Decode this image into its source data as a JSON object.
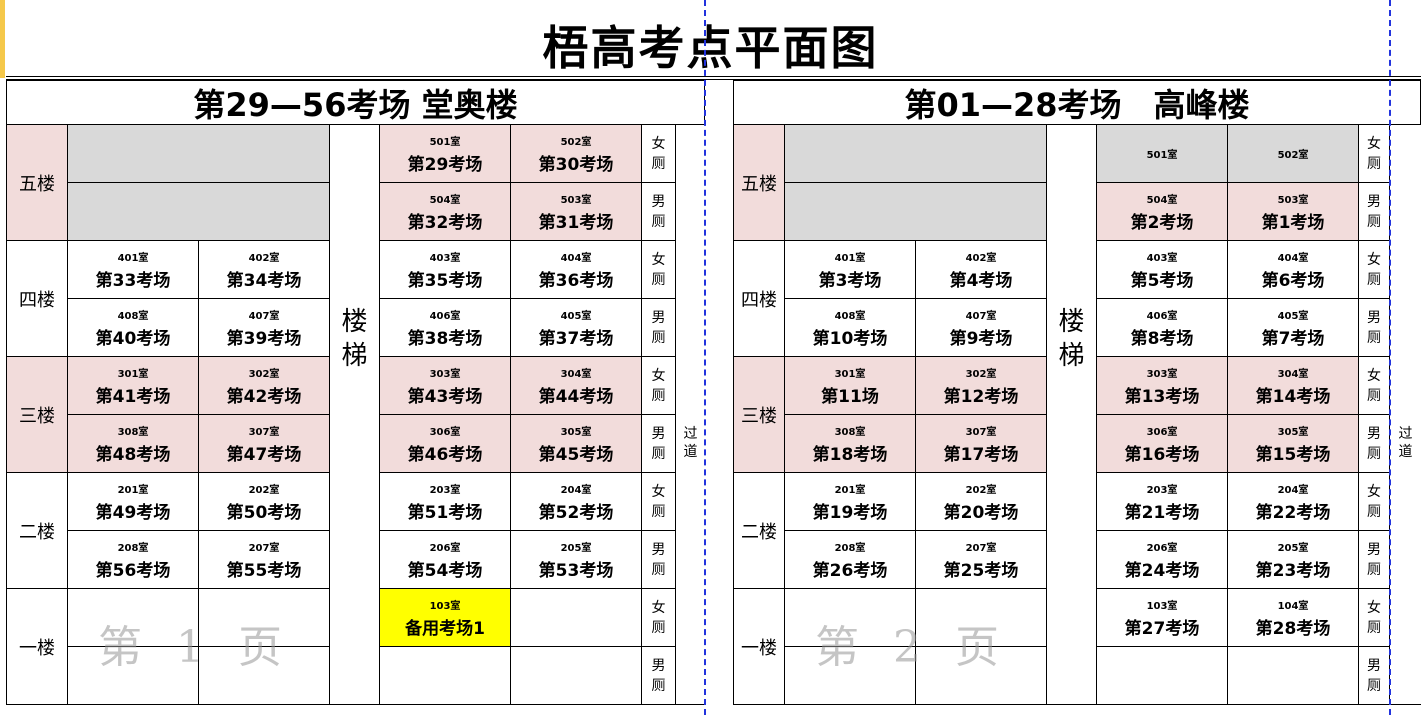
{
  "title": "梧高考点平面图",
  "stairs_label": "楼梯",
  "aisle_label": "过道",
  "colors": {
    "pink": "#f2dcdb",
    "gray": "#d9d9d9",
    "yellow": "#ffff00",
    "white": "#ffffff",
    "page_break": "#2233dd"
  },
  "watermarks": [
    "第 1 页",
    "第 2 页"
  ],
  "buildings": [
    {
      "title": "第29—56考场 堂奥楼",
      "floors": [
        {
          "label": "五楼",
          "color": "pink",
          "rows": [
            {
              "left_gray": true,
              "cells": [
                {
                  "room": "501室",
                  "exam": "第29考场",
                  "color": "pink"
                },
                {
                  "room": "502室",
                  "exam": "第30考场",
                  "color": "pink"
                }
              ],
              "toilet": "女厕"
            },
            {
              "left_gray": true,
              "cells": [
                {
                  "room": "504室",
                  "exam": "第32考场",
                  "color": "pink"
                },
                {
                  "room": "503室",
                  "exam": "第31考场",
                  "color": "pink"
                }
              ],
              "toilet": "男厕"
            }
          ]
        },
        {
          "label": "四楼",
          "color": "white",
          "rows": [
            {
              "cells": [
                {
                  "room": "401室",
                  "exam": "第33考场"
                },
                {
                  "room": "402室",
                  "exam": "第34考场"
                },
                {
                  "room": "403室",
                  "exam": "第35考场"
                },
                {
                  "room": "404室",
                  "exam": "第36考场"
                }
              ],
              "toilet": "女厕"
            },
            {
              "cells": [
                {
                  "room": "408室",
                  "exam": "第40考场"
                },
                {
                  "room": "407室",
                  "exam": "第39考场"
                },
                {
                  "room": "406室",
                  "exam": "第38考场"
                },
                {
                  "room": "405室",
                  "exam": "第37考场"
                }
              ],
              "toilet": "男厕"
            }
          ]
        },
        {
          "label": "三楼",
          "color": "pink",
          "rows": [
            {
              "cells": [
                {
                  "room": "301室",
                  "exam": "第41考场",
                  "color": "pink"
                },
                {
                  "room": "302室",
                  "exam": "第42考场",
                  "color": "pink"
                },
                {
                  "room": "303室",
                  "exam": "第43考场",
                  "color": "pink"
                },
                {
                  "room": "304室",
                  "exam": "第44考场",
                  "color": "pink"
                }
              ],
              "toilet": "女厕"
            },
            {
              "cells": [
                {
                  "room": "308室",
                  "exam": "第48考场",
                  "color": "pink"
                },
                {
                  "room": "307室",
                  "exam": "第47考场",
                  "color": "pink"
                },
                {
                  "room": "306室",
                  "exam": "第46考场",
                  "color": "pink"
                },
                {
                  "room": "305室",
                  "exam": "第45考场",
                  "color": "pink"
                }
              ],
              "toilet": "男厕"
            }
          ]
        },
        {
          "label": "二楼",
          "color": "white",
          "rows": [
            {
              "cells": [
                {
                  "room": "201室",
                  "exam": "第49考场"
                },
                {
                  "room": "202室",
                  "exam": "第50考场"
                },
                {
                  "room": "203室",
                  "exam": "第51考场"
                },
                {
                  "room": "204室",
                  "exam": "第52考场"
                }
              ],
              "toilet": "女厕"
            },
            {
              "cells": [
                {
                  "room": "208室",
                  "exam": "第56考场"
                },
                {
                  "room": "207室",
                  "exam": "第55考场"
                },
                {
                  "room": "206室",
                  "exam": "第54考场"
                },
                {
                  "room": "205室",
                  "exam": "第53考场"
                }
              ],
              "toilet": "男厕"
            }
          ]
        },
        {
          "label": "一楼",
          "color": "white",
          "rows": [
            {
              "cells": [
                {},
                {},
                {
                  "room": "103室",
                  "exam": "备用考场1",
                  "color": "yellow"
                },
                {}
              ],
              "toilet": "女厕"
            },
            {
              "cells": [
                {},
                {},
                {},
                {}
              ],
              "toilet": "男厕"
            }
          ]
        }
      ]
    },
    {
      "title": "第01—28考场　高峰楼",
      "floors": [
        {
          "label": "五楼",
          "color": "pink",
          "rows": [
            {
              "left_gray": true,
              "cells": [
                {
                  "room": "501室",
                  "color": "gray"
                },
                {
                  "room": "502室",
                  "color": "gray"
                }
              ],
              "toilet": "女厕"
            },
            {
              "left_gray": true,
              "cells": [
                {
                  "room": "504室",
                  "exam": "第2考场",
                  "color": "pink"
                },
                {
                  "room": "503室",
                  "exam": "第1考场",
                  "color": "pink"
                }
              ],
              "toilet": "男厕"
            }
          ]
        },
        {
          "label": "四楼",
          "color": "white",
          "rows": [
            {
              "cells": [
                {
                  "room": "401室",
                  "exam": "第3考场"
                },
                {
                  "room": "402室",
                  "exam": "第4考场"
                },
                {
                  "room": "403室",
                  "exam": "第5考场"
                },
                {
                  "room": "404室",
                  "exam": "第6考场"
                }
              ],
              "toilet": "女厕"
            },
            {
              "cells": [
                {
                  "room": "408室",
                  "exam": "第10考场"
                },
                {
                  "room": "407室",
                  "exam": "第9考场"
                },
                {
                  "room": "406室",
                  "exam": "第8考场"
                },
                {
                  "room": "405室",
                  "exam": "第7考场"
                }
              ],
              "toilet": "男厕"
            }
          ]
        },
        {
          "label": "三楼",
          "color": "pink",
          "rows": [
            {
              "cells": [
                {
                  "room": "301室",
                  "exam": "第11场",
                  "color": "pink"
                },
                {
                  "room": "302室",
                  "exam": "第12考场",
                  "color": "pink"
                },
                {
                  "room": "303室",
                  "exam": "第13考场",
                  "color": "pink"
                },
                {
                  "room": "304室",
                  "exam": "第14考场",
                  "color": "pink"
                }
              ],
              "toilet": "女厕"
            },
            {
              "cells": [
                {
                  "room": "308室",
                  "exam": "第18考场",
                  "color": "pink"
                },
                {
                  "room": "307室",
                  "exam": "第17考场",
                  "color": "pink"
                },
                {
                  "room": "306室",
                  "exam": "第16考场",
                  "color": "pink"
                },
                {
                  "room": "305室",
                  "exam": "第15考场",
                  "color": "pink"
                }
              ],
              "toilet": "男厕"
            }
          ]
        },
        {
          "label": "二楼",
          "color": "white",
          "rows": [
            {
              "cells": [
                {
                  "room": "201室",
                  "exam": "第19考场"
                },
                {
                  "room": "202室",
                  "exam": "第20考场"
                },
                {
                  "room": "203室",
                  "exam": "第21考场"
                },
                {
                  "room": "204室",
                  "exam": "第22考场"
                }
              ],
              "toilet": "女厕"
            },
            {
              "cells": [
                {
                  "room": "208室",
                  "exam": "第26考场"
                },
                {
                  "room": "207室",
                  "exam": "第25考场"
                },
                {
                  "room": "206室",
                  "exam": "第24考场"
                },
                {
                  "room": "205室",
                  "exam": "第23考场"
                }
              ],
              "toilet": "男厕"
            }
          ]
        },
        {
          "label": "一楼",
          "color": "white",
          "rows": [
            {
              "cells": [
                {},
                {},
                {
                  "room": "103室",
                  "exam": "第27考场"
                },
                {
                  "room": "104室",
                  "exam": "第28考场"
                }
              ],
              "toilet": "女厕"
            },
            {
              "cells": [
                {},
                {},
                {},
                {}
              ],
              "toilet": "男厕"
            }
          ]
        }
      ]
    }
  ]
}
